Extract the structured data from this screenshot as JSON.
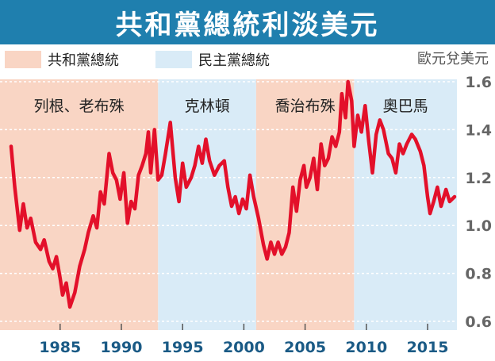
{
  "title": "共和黨總統利淡美元",
  "legend": {
    "republican": {
      "label": "共和黨總統",
      "color": "#f9d5c4"
    },
    "democratic": {
      "label": "民主黨總統",
      "color": "#d9ebf7"
    }
  },
  "unit_label": "歐元兌美元",
  "chart_data": {
    "type": "line",
    "ylim": [
      0.6,
      1.6
    ],
    "xlim": [
      1981,
      2017.2
    ],
    "y_ticks": [
      "0.6",
      "0.8",
      "1.0",
      "1.2",
      "1.4",
      "1.6"
    ],
    "x_ticks": [
      "1985",
      "1990",
      "1995",
      "2000",
      "2005",
      "2010",
      "2015"
    ],
    "x_tick_values": [
      1985,
      1990,
      1995,
      2000,
      2005,
      2010,
      2015
    ],
    "y_tick_values": [
      0.6,
      0.8,
      1.0,
      1.2,
      1.4,
      1.6
    ],
    "line_color": "#e3102a",
    "eras": [
      {
        "label": "列根、老布殊",
        "start": 1981,
        "end": 1993,
        "party": "republican"
      },
      {
        "label": "克林頓",
        "start": 1993,
        "end": 2001,
        "party": "democratic"
      },
      {
        "label": "喬治布殊",
        "start": 2001,
        "end": 2009,
        "party": "republican"
      },
      {
        "label": "奧巴馬",
        "start": 2009,
        "end": 2017.2,
        "party": "democratic"
      }
    ],
    "points": [
      [
        1981.0,
        1.33
      ],
      [
        1981.3,
        1.16
      ],
      [
        1981.7,
        0.98
      ],
      [
        1982.0,
        1.09
      ],
      [
        1982.3,
        0.99
      ],
      [
        1982.6,
        1.03
      ],
      [
        1983.0,
        0.93
      ],
      [
        1983.4,
        0.9
      ],
      [
        1983.7,
        0.94
      ],
      [
        1984.1,
        0.85
      ],
      [
        1984.4,
        0.82
      ],
      [
        1984.7,
        0.87
      ],
      [
        1985.0,
        0.78
      ],
      [
        1985.2,
        0.71
      ],
      [
        1985.5,
        0.76
      ],
      [
        1985.8,
        0.66
      ],
      [
        1986.2,
        0.72
      ],
      [
        1986.6,
        0.83
      ],
      [
        1987.0,
        0.9
      ],
      [
        1987.3,
        0.97
      ],
      [
        1987.7,
        1.04
      ],
      [
        1988.0,
        0.99
      ],
      [
        1988.3,
        1.14
      ],
      [
        1988.6,
        1.09
      ],
      [
        1989.0,
        1.3
      ],
      [
        1989.3,
        1.22
      ],
      [
        1989.6,
        1.19
      ],
      [
        1989.9,
        1.11
      ],
      [
        1990.2,
        1.22
      ],
      [
        1990.5,
        1.01
      ],
      [
        1990.8,
        1.1
      ],
      [
        1991.1,
        1.07
      ],
      [
        1991.4,
        1.21
      ],
      [
        1991.7,
        1.25
      ],
      [
        1992.0,
        1.3
      ],
      [
        1992.2,
        1.39
      ],
      [
        1992.4,
        1.22
      ],
      [
        1992.7,
        1.4
      ],
      [
        1993.0,
        1.19
      ],
      [
        1993.3,
        1.21
      ],
      [
        1993.6,
        1.3
      ],
      [
        1994.0,
        1.43
      ],
      [
        1994.4,
        1.2
      ],
      [
        1994.7,
        1.1
      ],
      [
        1995.0,
        1.26
      ],
      [
        1995.3,
        1.16
      ],
      [
        1995.7,
        1.2
      ],
      [
        1996.0,
        1.25
      ],
      [
        1996.3,
        1.33
      ],
      [
        1996.6,
        1.26
      ],
      [
        1996.9,
        1.36
      ],
      [
        1997.2,
        1.27
      ],
      [
        1997.6,
        1.21
      ],
      [
        1998.0,
        1.25
      ],
      [
        1998.4,
        1.27
      ],
      [
        1998.7,
        1.16
      ],
      [
        1999.0,
        1.08
      ],
      [
        1999.3,
        1.12
      ],
      [
        1999.6,
        1.05
      ],
      [
        1999.9,
        1.11
      ],
      [
        2000.2,
        1.07
      ],
      [
        2000.5,
        1.21
      ],
      [
        2000.8,
        1.12
      ],
      [
        2001.2,
        1.03
      ],
      [
        2001.6,
        0.92
      ],
      [
        2001.9,
        0.86
      ],
      [
        2002.2,
        0.93
      ],
      [
        2002.5,
        0.88
      ],
      [
        2002.8,
        0.93
      ],
      [
        2003.1,
        0.88
      ],
      [
        2003.4,
        0.91
      ],
      [
        2003.7,
        0.97
      ],
      [
        2004.0,
        1.16
      ],
      [
        2004.3,
        1.06
      ],
      [
        2004.6,
        1.19
      ],
      [
        2004.9,
        1.25
      ],
      [
        2005.1,
        1.16
      ],
      [
        2005.4,
        1.2
      ],
      [
        2005.7,
        1.28
      ],
      [
        2006.0,
        1.15
      ],
      [
        2006.3,
        1.34
      ],
      [
        2006.6,
        1.25
      ],
      [
        2006.9,
        1.28
      ],
      [
        2007.2,
        1.37
      ],
      [
        2007.5,
        1.33
      ],
      [
        2007.8,
        1.39
      ],
      [
        2008.0,
        1.55
      ],
      [
        2008.3,
        1.45
      ],
      [
        2008.5,
        1.6
      ],
      [
        2008.8,
        1.52
      ],
      [
        2009.0,
        1.33
      ],
      [
        2009.3,
        1.46
      ],
      [
        2009.6,
        1.39
      ],
      [
        2009.9,
        1.5
      ],
      [
        2010.2,
        1.35
      ],
      [
        2010.5,
        1.22
      ],
      [
        2010.8,
        1.38
      ],
      [
        2011.1,
        1.44
      ],
      [
        2011.4,
        1.4
      ],
      [
        2011.8,
        1.3
      ],
      [
        2012.1,
        1.28
      ],
      [
        2012.4,
        1.22
      ],
      [
        2012.7,
        1.34
      ],
      [
        2013.0,
        1.3
      ],
      [
        2013.3,
        1.34
      ],
      [
        2013.7,
        1.38
      ],
      [
        2014.0,
        1.36
      ],
      [
        2014.4,
        1.31
      ],
      [
        2014.7,
        1.25
      ],
      [
        2015.0,
        1.12
      ],
      [
        2015.2,
        1.05
      ],
      [
        2015.5,
        1.1
      ],
      [
        2015.8,
        1.16
      ],
      [
        2016.1,
        1.08
      ],
      [
        2016.5,
        1.15
      ],
      [
        2016.8,
        1.1
      ],
      [
        2017.2,
        1.12
      ]
    ]
  }
}
